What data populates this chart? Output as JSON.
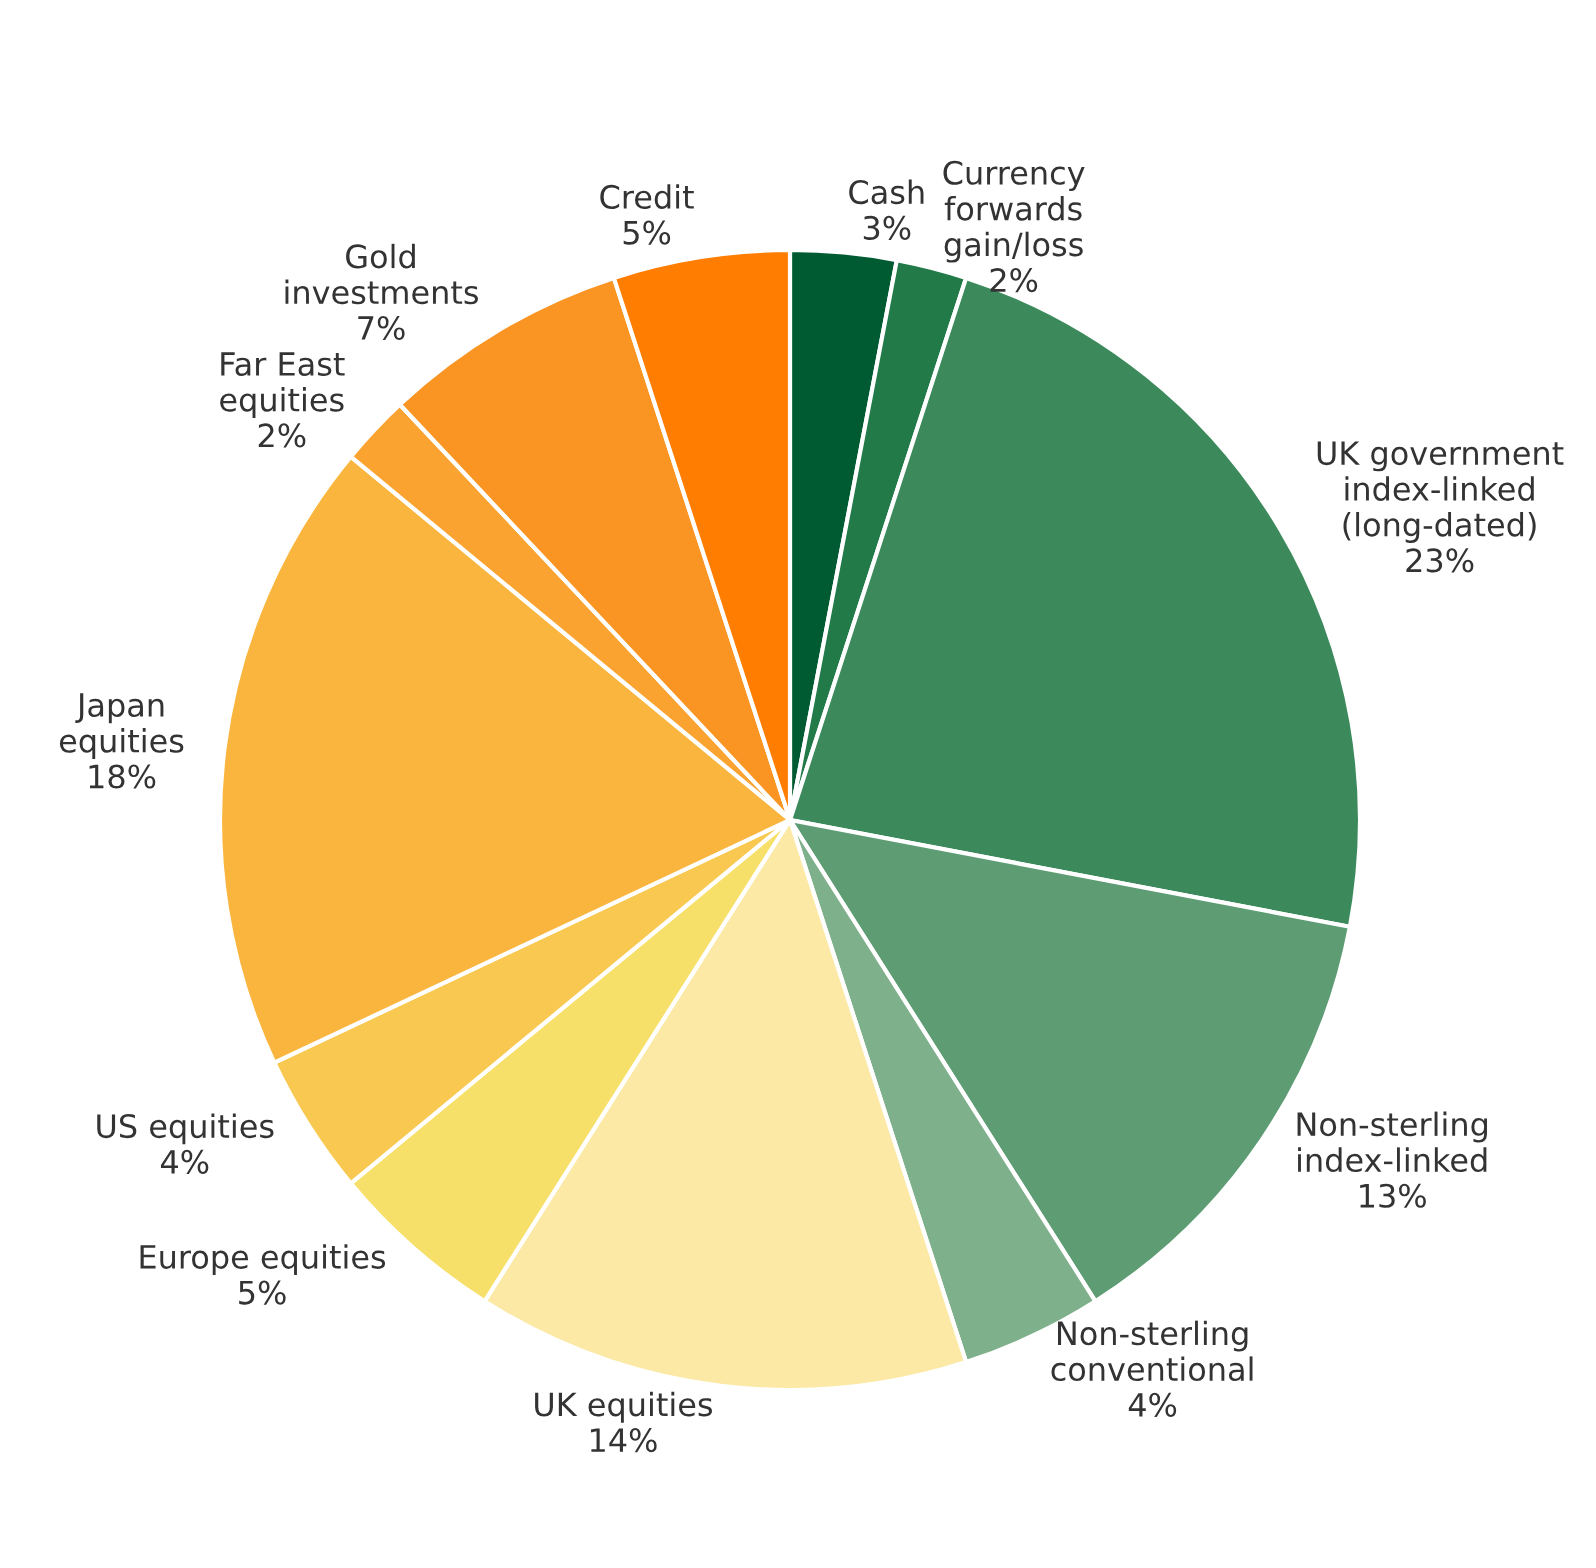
{
  "chart_data": {
    "type": "pie",
    "categories": [
      "Cash",
      "Currency\nforwards\ngain/loss",
      "UK government\nindex-linked\n(long-dated)",
      "Non-sterling\nindex-linked",
      "Non-sterling\nconventional",
      "UK equities",
      "Europe equities",
      "US equities",
      "Japan\nequities",
      "Far East\nequities",
      "Gold\ninvestments",
      "Credit"
    ],
    "values": [
      3,
      2,
      23,
      13,
      4,
      14,
      5,
      4,
      18,
      2,
      7,
      5
    ],
    "value_labels": [
      "3%",
      "2%",
      "23%",
      "13%",
      "4%",
      "14%",
      "5%",
      "4%",
      "18%",
      "2%",
      "7%",
      "5%"
    ],
    "colors": [
      "#005a32",
      "#217a48",
      "#3c8a5c",
      "#5e9c74",
      "#7fb08c",
      "#fbe9a5",
      "#f7e06a",
      "#f9c850",
      "#fab53e",
      "#fba330",
      "#fa9422",
      "#ff7d00"
    ]
  }
}
